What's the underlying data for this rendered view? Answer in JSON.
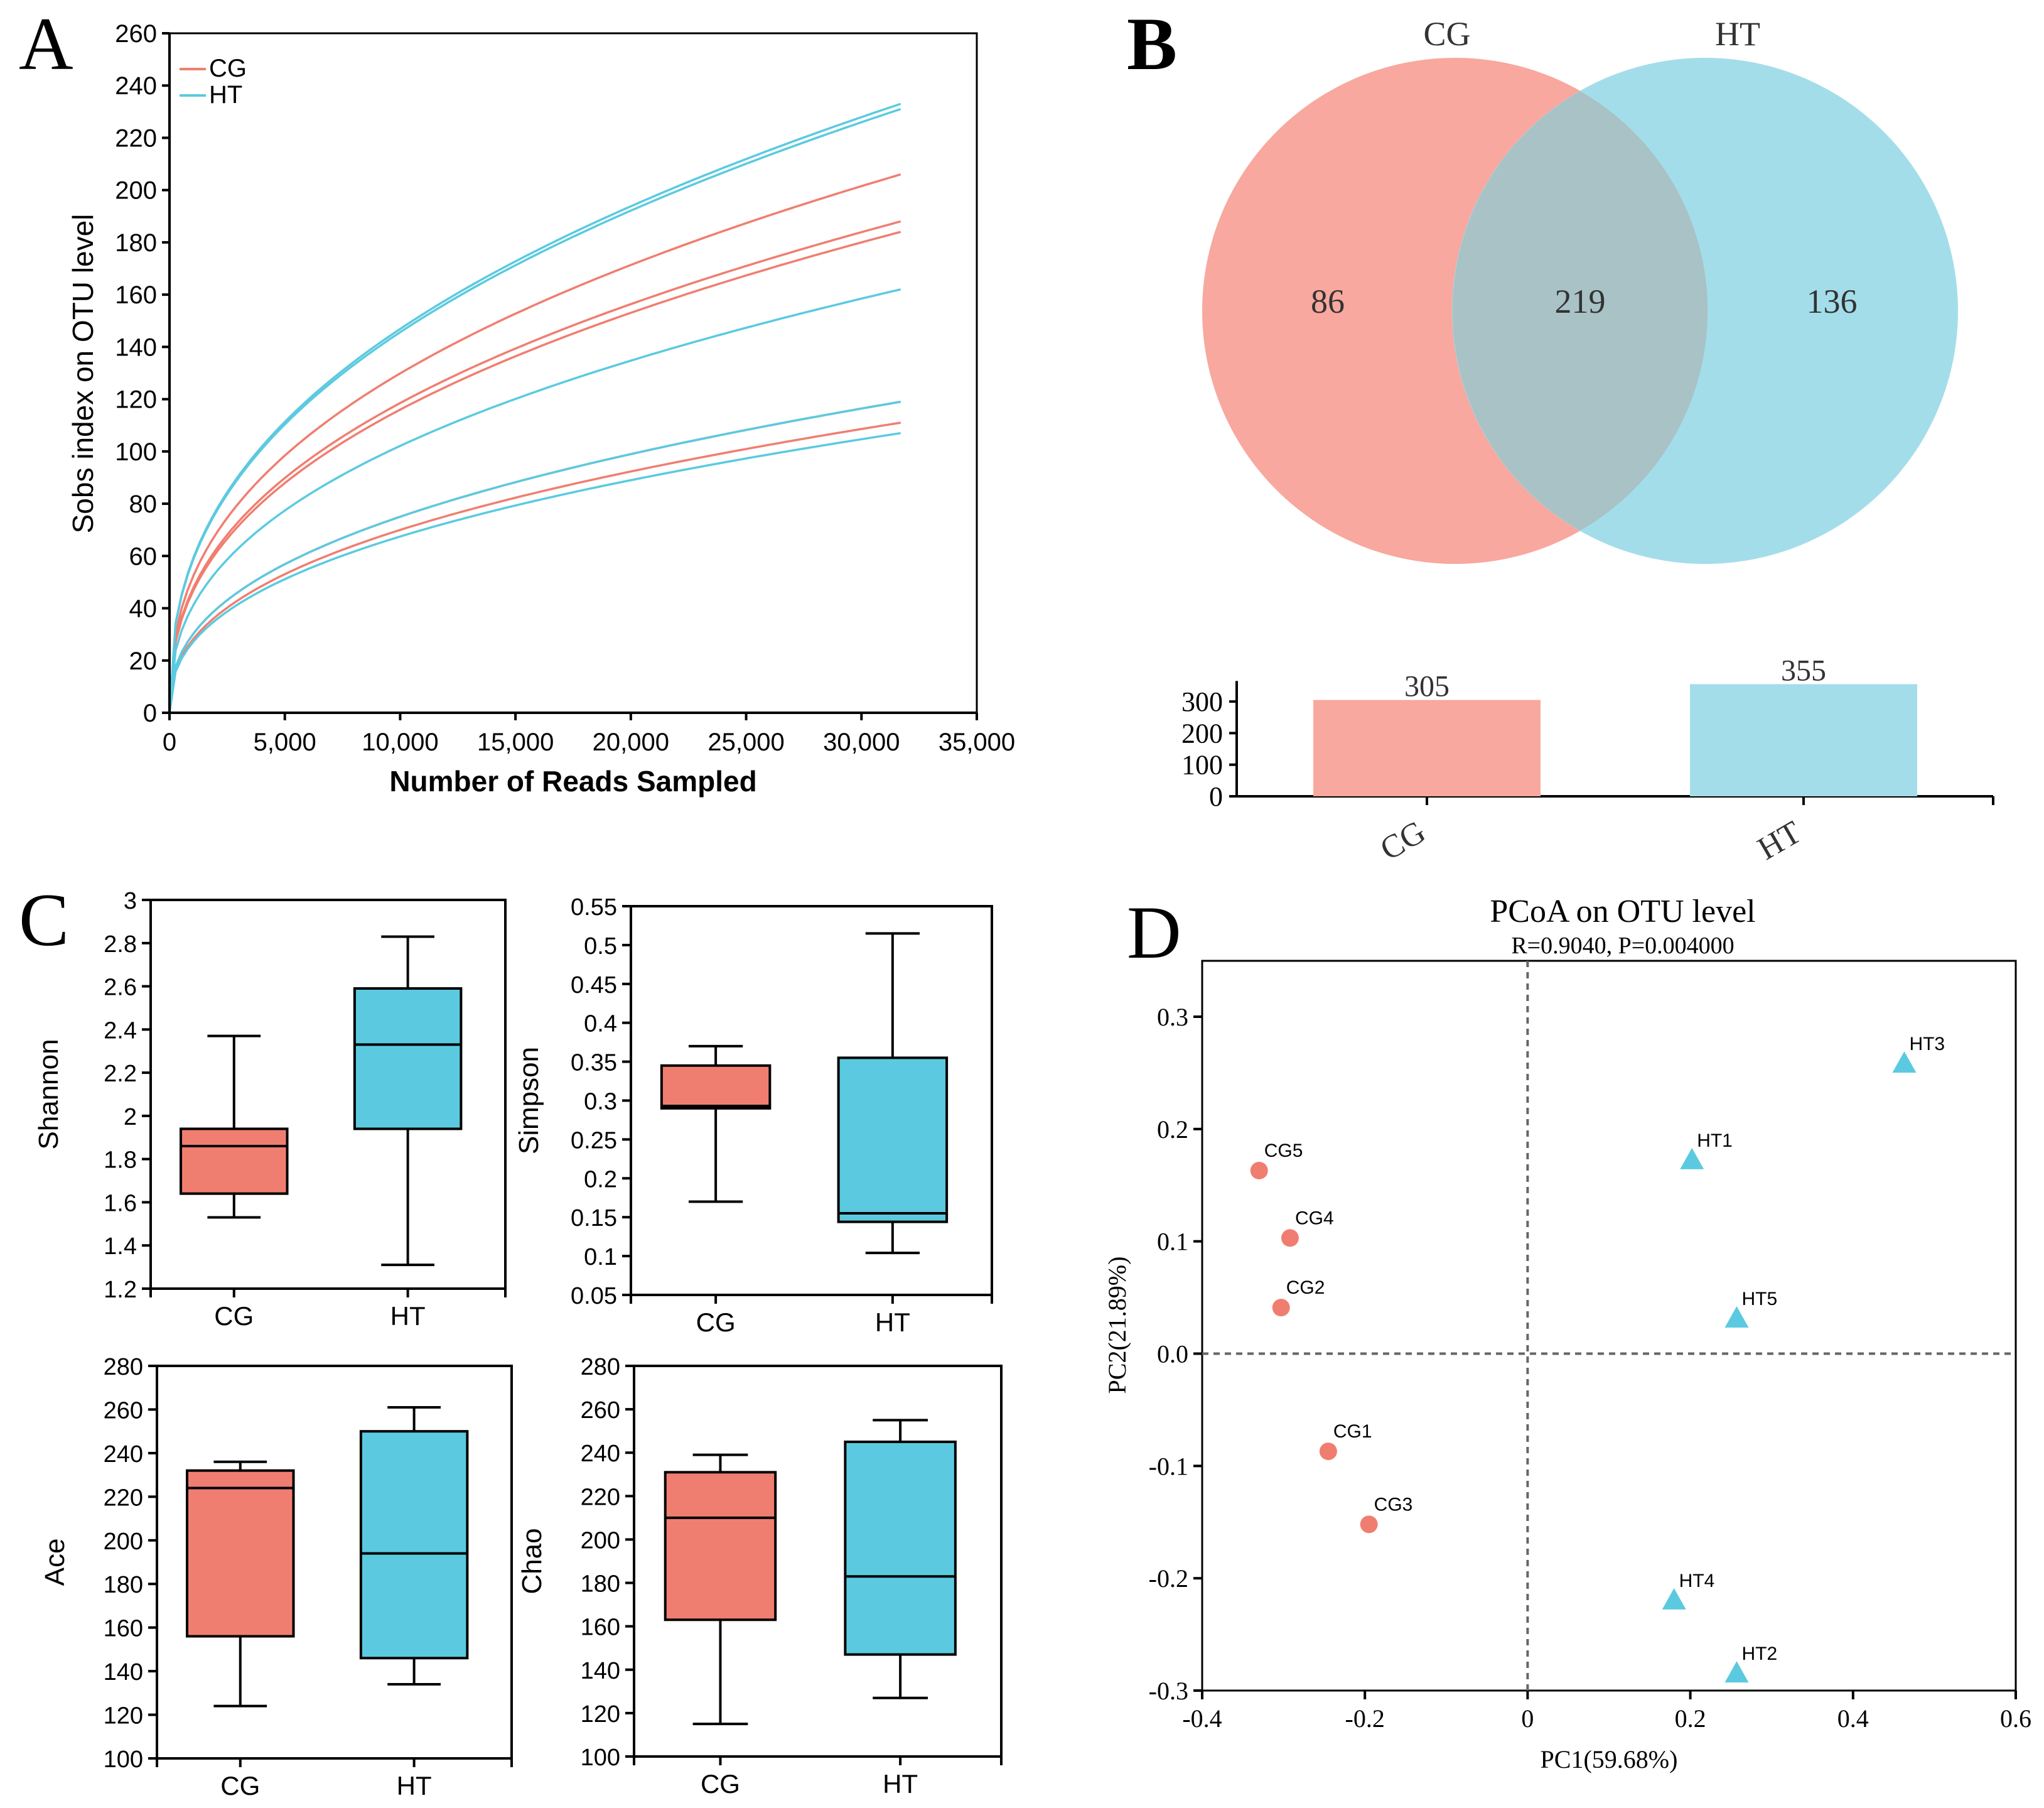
{
  "colors": {
    "cg": "#F07E70",
    "ht": "#5BCAE0",
    "cg_light": "#F8A89E",
    "ht_light": "#A3DDEA",
    "overlap": "#A9C2C6"
  },
  "chart_data": [
    {
      "panel": "A",
      "type": "line",
      "xlabel": "Number of Reads Sampled",
      "ylabel": "Sobs index on OTU level",
      "xlim": [
        0,
        35000
      ],
      "ylim": [
        0,
        260
      ],
      "xticks": [
        0,
        5000,
        10000,
        15000,
        20000,
        25000,
        30000,
        35000
      ],
      "xtick_labels": [
        "0",
        "5,000",
        "10,000",
        "15,000",
        "20,000",
        "25,000",
        "30,000",
        "35,000"
      ],
      "yticks": [
        0,
        20,
        40,
        60,
        80,
        100,
        120,
        140,
        160,
        180,
        200,
        220,
        240,
        260
      ],
      "legend": [
        {
          "name": "CG",
          "color": "#F07E70"
        },
        {
          "name": "HT",
          "color": "#5BCAE0"
        }
      ],
      "x_max": 31700,
      "series": [
        {
          "name": "CG",
          "final": 206
        },
        {
          "name": "CG",
          "final": 188
        },
        {
          "name": "CG",
          "final": 184
        },
        {
          "name": "CG",
          "final": 119
        },
        {
          "name": "CG",
          "final": 111
        },
        {
          "name": "HT",
          "final": 233
        },
        {
          "name": "HT",
          "final": 231
        },
        {
          "name": "HT",
          "final": 162
        },
        {
          "name": "HT",
          "final": 119
        },
        {
          "name": "HT",
          "final": 107
        }
      ]
    },
    {
      "panel": "B",
      "type": "venn",
      "sets": [
        "CG",
        "HT"
      ],
      "only_values": [
        86,
        136
      ],
      "shared_value": 219,
      "bar_categories": [
        "CG",
        "HT"
      ],
      "bar_values": [
        305,
        355
      ],
      "bar_ylim": [
        0,
        355
      ],
      "bar_yticks": [
        0,
        100,
        200,
        300
      ]
    },
    {
      "panel": "C",
      "type": "box",
      "categories": [
        "CG",
        "HT"
      ],
      "subplots": [
        {
          "ylabel": "Shannon",
          "ylim": [
            1.2,
            3.0
          ],
          "yticks": [
            1.2,
            1.4,
            1.6,
            1.8,
            2.0,
            2.2,
            2.4,
            2.6,
            2.8,
            3.0
          ],
          "ytick_labels": [
            "1.2",
            "1.4",
            "1.6",
            "1.8",
            "2",
            "2.2",
            "2.4",
            "2.6",
            "2.8",
            "3"
          ],
          "boxes": [
            {
              "min": 1.53,
              "q1": 1.64,
              "median": 1.86,
              "q3": 1.94,
              "max": 2.37
            },
            {
              "min": 1.31,
              "q1": 1.94,
              "median": 2.33,
              "q3": 2.59,
              "max": 2.83
            }
          ]
        },
        {
          "ylabel": "Simpson",
          "ylim": [
            0.05,
            0.55
          ],
          "yticks": [
            0.05,
            0.1,
            0.15,
            0.2,
            0.25,
            0.3,
            0.35,
            0.4,
            0.45,
            0.5,
            0.55
          ],
          "ytick_labels": [
            "0.05",
            "0.1",
            "0.15",
            "0.2",
            "0.25",
            "0.3",
            "0.35",
            "0.4",
            "0.45",
            "0.5",
            "0.55"
          ],
          "boxes": [
            {
              "min": 0.17,
              "q1": 0.29,
              "median": 0.293,
              "q3": 0.345,
              "max": 0.37
            },
            {
              "min": 0.104,
              "q1": 0.144,
              "median": 0.155,
              "q3": 0.355,
              "max": 0.515
            }
          ]
        },
        {
          "ylabel": "Ace",
          "ylim": [
            100,
            280
          ],
          "yticks": [
            100,
            120,
            140,
            160,
            180,
            200,
            220,
            240,
            260,
            280
          ],
          "ytick_labels": [
            "100",
            "120",
            "140",
            "160",
            "180",
            "200",
            "220",
            "240",
            "260",
            "280"
          ],
          "boxes": [
            {
              "min": 124,
              "q1": 156,
              "median": 224,
              "q3": 232,
              "max": 236
            },
            {
              "min": 134,
              "q1": 146,
              "median": 194,
              "q3": 250,
              "max": 261
            }
          ]
        },
        {
          "ylabel": "Chao",
          "ylim": [
            100,
            280
          ],
          "yticks": [
            100,
            120,
            140,
            160,
            180,
            200,
            220,
            240,
            260,
            280
          ],
          "ytick_labels": [
            "100",
            "120",
            "140",
            "160",
            "180",
            "200",
            "220",
            "240",
            "260",
            "280"
          ],
          "boxes": [
            {
              "min": 115,
              "q1": 163,
              "median": 210,
              "q3": 231,
              "max": 239
            },
            {
              "min": 127,
              "q1": 147,
              "median": 183,
              "q3": 245,
              "max": 255
            }
          ]
        }
      ]
    },
    {
      "panel": "D",
      "type": "scatter",
      "title": "PCoA on OTU level",
      "subtitle": "R=0.9040, P=0.004000",
      "xlabel": "PC1(59.68%)",
      "ylabel": "PC2(21.89%)",
      "xlim": [
        -0.4,
        0.6
      ],
      "ylim": [
        -0.3,
        0.35
      ],
      "xticks": [
        -0.4,
        -0.2,
        0,
        0.2,
        0.4,
        0.6
      ],
      "xtick_labels": [
        "-0.4",
        "-0.2",
        "0",
        "0.2",
        "0.4",
        "0.6"
      ],
      "yticks": [
        -0.3,
        -0.2,
        -0.1,
        0,
        0.1,
        0.2,
        0.3
      ],
      "ytick_labels": [
        "-0.3",
        "-0.2",
        "-0.1",
        "0.0",
        "0.1",
        "0.2",
        "0.3"
      ],
      "points": [
        {
          "label": "CG5",
          "group": "CG",
          "x": -0.33,
          "y": 0.163
        },
        {
          "label": "CG4",
          "group": "CG",
          "x": -0.292,
          "y": 0.103
        },
        {
          "label": "CG2",
          "group": "CG",
          "x": -0.303,
          "y": 0.041
        },
        {
          "label": "CG1",
          "group": "CG",
          "x": -0.245,
          "y": -0.087
        },
        {
          "label": "CG3",
          "group": "CG",
          "x": -0.195,
          "y": -0.152
        },
        {
          "label": "HT3",
          "group": "HT",
          "x": 0.463,
          "y": 0.258
        },
        {
          "label": "HT1",
          "group": "HT",
          "x": 0.202,
          "y": 0.172
        },
        {
          "label": "HT5",
          "group": "HT",
          "x": 0.257,
          "y": 0.031
        },
        {
          "label": "HT4",
          "group": "HT",
          "x": 0.18,
          "y": -0.22
        },
        {
          "label": "HT2",
          "group": "HT",
          "x": 0.257,
          "y": -0.285
        }
      ]
    }
  ],
  "panel_letters": [
    "A",
    "B",
    "C",
    "D"
  ]
}
